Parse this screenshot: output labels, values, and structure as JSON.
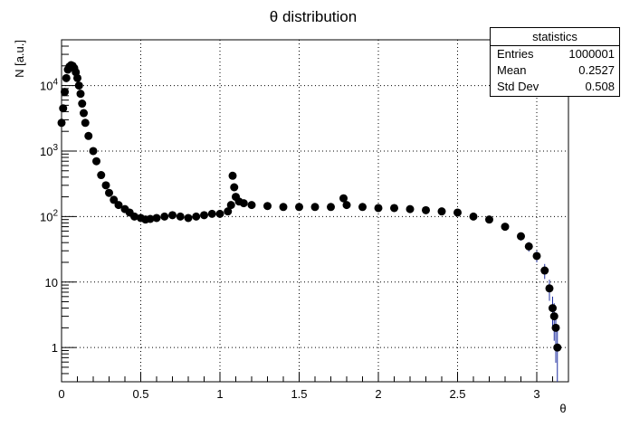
{
  "chart_data": {
    "type": "scatter",
    "title": "θ distribution",
    "xlabel": "θ",
    "ylabel": "N [a.u.]",
    "xlim": [
      0,
      3.2
    ],
    "ylim": [
      0.3,
      50000
    ],
    "yscale": "log",
    "grid": true,
    "x_ticks": [
      "0",
      "0.5",
      "1",
      "1.5",
      "2",
      "2.5",
      "3"
    ],
    "y_ticks": [
      {
        "value": 1,
        "label": "1"
      },
      {
        "value": 10,
        "label": "10"
      },
      {
        "value": 100,
        "label": "10^2"
      },
      {
        "value": 1000,
        "label": "10^3"
      },
      {
        "value": 10000,
        "label": "10^4"
      }
    ],
    "marker_color": "#000000",
    "errorbar_color": "#1f2fa0",
    "x": [
      0.0,
      0.01,
      0.02,
      0.03,
      0.04,
      0.05,
      0.06,
      0.07,
      0.08,
      0.09,
      0.1,
      0.11,
      0.12,
      0.13,
      0.14,
      0.15,
      0.17,
      0.2,
      0.22,
      0.25,
      0.28,
      0.3,
      0.33,
      0.36,
      0.4,
      0.43,
      0.46,
      0.5,
      0.53,
      0.56,
      0.6,
      0.65,
      0.7,
      0.75,
      0.8,
      0.85,
      0.9,
      0.95,
      1.0,
      1.05,
      1.07,
      1.08,
      1.09,
      1.1,
      1.12,
      1.15,
      1.2,
      1.3,
      1.4,
      1.5,
      1.6,
      1.7,
      1.78,
      1.8,
      1.9,
      2.0,
      2.1,
      2.2,
      2.3,
      2.4,
      2.5,
      2.6,
      2.7,
      2.8,
      2.9,
      2.95,
      3.0,
      3.05,
      3.08,
      3.1,
      3.11,
      3.12,
      3.13
    ],
    "y": [
      2700,
      4500,
      8000,
      13000,
      17500,
      19500,
      20500,
      20000,
      18500,
      16000,
      13000,
      10000,
      7500,
      5300,
      3800,
      2700,
      1700,
      1000,
      700,
      430,
      300,
      230,
      180,
      150,
      130,
      115,
      100,
      95,
      90,
      92,
      95,
      100,
      105,
      100,
      95,
      100,
      105,
      110,
      110,
      120,
      150,
      420,
      280,
      200,
      170,
      160,
      150,
      145,
      140,
      140,
      140,
      140,
      190,
      150,
      140,
      135,
      135,
      130,
      125,
      120,
      115,
      100,
      90,
      70,
      50,
      35,
      25,
      15,
      8,
      4,
      3,
      2,
      1
    ]
  },
  "stats": {
    "title": "statistics",
    "rows": [
      {
        "label": "Entries",
        "value": "1000001"
      },
      {
        "label": "Mean",
        "value": "0.2527"
      },
      {
        "label": "Std Dev",
        "value": "0.508"
      }
    ]
  }
}
